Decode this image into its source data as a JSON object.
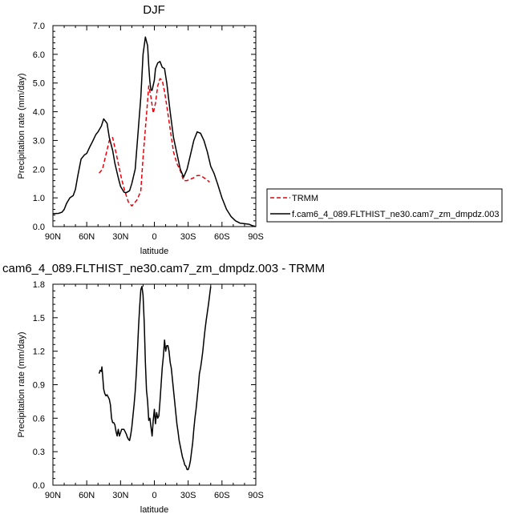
{
  "chart_data": [
    {
      "type": "line",
      "title": "DJF",
      "xlabel": "latitude",
      "ylabel": "Precipitation rate (mm/day)",
      "xlim": [
        90,
        -90
      ],
      "ylim": [
        0,
        7
      ],
      "x_ticks": [
        "90N",
        "60N",
        "30N",
        "0",
        "30S",
        "60S",
        "90S"
      ],
      "y_ticks": [
        "0.0",
        "1.0",
        "2.0",
        "3.0",
        "4.0",
        "5.0",
        "6.0",
        "7.0"
      ],
      "legend_position": "right",
      "series": [
        {
          "name": "TRMM",
          "color": "#e8000b",
          "dash": "dashed",
          "x": [
            49,
            46,
            43,
            40,
            37,
            35,
            32,
            29,
            26,
            23,
            20,
            18,
            15,
            12,
            10,
            7,
            5,
            3,
            1,
            -1,
            -3,
            -5,
            -7,
            -9,
            -11,
            -14,
            -17,
            -20,
            -23,
            -26,
            -29,
            -32,
            -35,
            -38,
            -41,
            -44,
            -46,
            -48,
            -49
          ],
          "y": [
            1.86,
            2.0,
            2.5,
            3.0,
            3.1,
            2.75,
            2.2,
            1.65,
            1.2,
            0.85,
            0.72,
            0.8,
            0.95,
            1.25,
            2.4,
            3.9,
            4.9,
            4.5,
            3.95,
            4.3,
            4.9,
            5.15,
            5.1,
            4.7,
            4.2,
            3.4,
            2.6,
            2.2,
            1.95,
            1.6,
            1.6,
            1.65,
            1.7,
            1.78,
            1.78,
            1.7,
            1.65,
            1.58,
            1.55
          ]
        },
        {
          "name": "f.cam6_4_089.FLTHIST_ne30.cam7_zm_dmpdz.003",
          "color": "#000000",
          "dash": "solid",
          "x": [
            90,
            85,
            82,
            80,
            78,
            75,
            72,
            70,
            68,
            65,
            62,
            60,
            57,
            55,
            52,
            50,
            47,
            45,
            42,
            40,
            37,
            35,
            32,
            30,
            27,
            25,
            22,
            20,
            17,
            15,
            12,
            10,
            8,
            6,
            5,
            4,
            3,
            2,
            0,
            -1,
            -3,
            -5,
            -7,
            -9,
            -11,
            -14,
            -17,
            -20,
            -23,
            -26,
            -29,
            -32,
            -35,
            -38,
            -41,
            -44,
            -47,
            -50,
            -53,
            -56,
            -60,
            -64,
            -68,
            -72,
            -76,
            -80,
            -84,
            -87,
            -90
          ],
          "y": [
            0.45,
            0.46,
            0.5,
            0.6,
            0.8,
            1.0,
            1.08,
            1.3,
            1.75,
            2.35,
            2.5,
            2.55,
            2.8,
            2.95,
            3.2,
            3.3,
            3.5,
            3.75,
            3.6,
            3.1,
            2.65,
            2.2,
            1.7,
            1.4,
            1.2,
            1.18,
            1.25,
            1.5,
            2.0,
            3.0,
            4.5,
            6.0,
            6.6,
            6.3,
            5.6,
            5.05,
            4.75,
            4.75,
            5.1,
            5.5,
            5.7,
            5.75,
            5.55,
            5.5,
            5.0,
            4.0,
            3.1,
            2.55,
            2.0,
            1.72,
            2.0,
            2.5,
            3.0,
            3.3,
            3.25,
            3.0,
            2.6,
            2.1,
            1.85,
            1.5,
            1.0,
            0.6,
            0.35,
            0.2,
            0.12,
            0.1,
            0.08,
            0.03,
            0.0
          ]
        }
      ]
    },
    {
      "type": "line",
      "title": "cam6_4_089.FLTHIST_ne30.cam7_zm_dmpdz.003 - TRMM",
      "xlabel": "latitude",
      "ylabel": "Precipitation rate (mm/day)",
      "xlim": [
        90,
        -90
      ],
      "ylim": [
        0,
        1.8
      ],
      "x_ticks": [
        "90N",
        "60N",
        "30N",
        "0",
        "30S",
        "60S",
        "90S"
      ],
      "y_ticks": [
        "0.0",
        "0.3",
        "0.6",
        "0.9",
        "1.2",
        "1.5",
        "1.8"
      ],
      "series": [
        {
          "color": "#000000",
          "dash": "solid",
          "x": [
            49,
            48,
            47,
            46.5,
            46,
            45,
            44,
            43,
            42,
            41,
            40,
            39,
            38,
            37,
            36,
            35,
            34,
            33,
            32,
            31,
            30,
            29,
            28,
            27,
            26,
            25,
            24,
            23,
            22,
            21,
            20,
            19,
            18,
            17,
            16,
            15,
            14,
            13,
            12,
            11,
            10,
            9,
            8,
            7,
            6,
            5,
            4,
            3,
            2,
            1,
            0,
            -1,
            -2,
            -3,
            -4,
            -5,
            -6,
            -7,
            -8,
            -9,
            -10,
            -11,
            -12,
            -13,
            -14,
            -15,
            -16,
            -17,
            -18,
            -19,
            -20,
            -21,
            -22,
            -23,
            -24,
            -25,
            -26,
            -27,
            -28,
            -29,
            -30,
            -31,
            -32,
            -33,
            -34,
            -35,
            -36,
            -37,
            -38,
            -39,
            -40,
            -41,
            -42,
            -43,
            -44,
            -45,
            -46,
            -47,
            -48,
            -49,
            -50
          ],
          "y": [
            1.0,
            1.03,
            1.02,
            1.06,
            1.0,
            0.86,
            0.82,
            0.8,
            0.81,
            0.79,
            0.77,
            0.72,
            0.6,
            0.56,
            0.56,
            0.54,
            0.48,
            0.44,
            0.5,
            0.44,
            0.47,
            0.5,
            0.5,
            0.5,
            0.48,
            0.46,
            0.43,
            0.41,
            0.4,
            0.45,
            0.52,
            0.62,
            0.72,
            0.84,
            1.0,
            1.2,
            1.42,
            1.6,
            1.75,
            1.78,
            1.7,
            1.45,
            1.1,
            0.85,
            0.75,
            0.58,
            0.6,
            0.52,
            0.44,
            0.58,
            0.68,
            0.55,
            0.65,
            0.6,
            0.62,
            0.75,
            0.9,
            1.05,
            1.15,
            1.3,
            1.2,
            1.25,
            1.25,
            1.2,
            1.1,
            1.05,
            0.95,
            0.85,
            0.75,
            0.65,
            0.55,
            0.48,
            0.4,
            0.35,
            0.3,
            0.25,
            0.22,
            0.18,
            0.17,
            0.14,
            0.14,
            0.17,
            0.22,
            0.3,
            0.38,
            0.5,
            0.6,
            0.68,
            0.78,
            0.88,
            1.0,
            1.05,
            1.12,
            1.2,
            1.3,
            1.4,
            1.48,
            1.55,
            1.62,
            1.7,
            1.78
          ]
        }
      ]
    }
  ]
}
